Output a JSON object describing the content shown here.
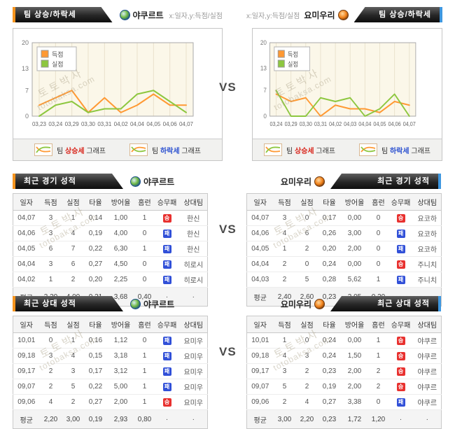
{
  "page": {
    "vs_label": "VS"
  },
  "watermark": {
    "line1": "토토박사",
    "line2": "totobaksa.com"
  },
  "teams": {
    "left": {
      "name": "야쿠르트"
    },
    "right": {
      "name": "요미우리"
    }
  },
  "trend": {
    "title": "팀 상승/하락세",
    "axis_hint": "x:일자,y:득점/실점",
    "legend": [
      {
        "pre": "팀 ",
        "em": "상승세",
        "post": " 그래프"
      },
      {
        "pre": "팀 ",
        "em": "하락세",
        "post": " 그래프"
      }
    ]
  },
  "recent": {
    "title": "최근 경기 성적",
    "columns": [
      "일자",
      "득점",
      "실점",
      "타율",
      "방어율",
      "홈런",
      "승무패",
      "상대팀"
    ],
    "left": {
      "rows": [
        {
          "date": "04,07",
          "gf": "3",
          "ga": "1",
          "ba": "0,14",
          "era": "1,00",
          "hr": "1",
          "res": "승",
          "res_type": "win",
          "opp": "한신"
        },
        {
          "date": "04,06",
          "gf": "3",
          "ga": "4",
          "ba": "0,19",
          "era": "4,00",
          "hr": "0",
          "res": "패",
          "res_type": "loss",
          "opp": "한신"
        },
        {
          "date": "04,05",
          "gf": "6",
          "ga": "7",
          "ba": "0,22",
          "era": "6,30",
          "hr": "1",
          "res": "패",
          "res_type": "loss",
          "opp": "한신"
        },
        {
          "date": "04,04",
          "gf": "3",
          "ga": "6",
          "ba": "0,27",
          "era": "4,50",
          "hr": "0",
          "res": "패",
          "res_type": "loss",
          "opp": "히로시"
        },
        {
          "date": "04,02",
          "gf": "1",
          "ga": "2",
          "ba": "0,20",
          "era": "2,25",
          "hr": "0",
          "res": "패",
          "res_type": "loss",
          "opp": "히로시"
        },
        {
          "date": "평균",
          "gf": "3,20",
          "ga": "4,00",
          "ba": "0,21",
          "era": "3,68",
          "hr": "0,40",
          "res": "·",
          "res_type": "none",
          "opp": "·",
          "avg": true
        }
      ]
    },
    "right": {
      "rows": [
        {
          "date": "04,07",
          "gf": "3",
          "ga": "0",
          "ba": "0,17",
          "era": "0,00",
          "hr": "0",
          "res": "승",
          "res_type": "win",
          "opp": "요코하"
        },
        {
          "date": "04,06",
          "gf": "4",
          "ga": "6",
          "ba": "0,26",
          "era": "3,00",
          "hr": "0",
          "res": "패",
          "res_type": "loss",
          "opp": "요코하"
        },
        {
          "date": "04,05",
          "gf": "1",
          "ga": "2",
          "ba": "0,20",
          "era": "2,00",
          "hr": "0",
          "res": "패",
          "res_type": "loss",
          "opp": "요코하"
        },
        {
          "date": "04,04",
          "gf": "2",
          "ga": "0",
          "ba": "0,24",
          "era": "0,00",
          "hr": "0",
          "res": "승",
          "res_type": "win",
          "opp": "주니치"
        },
        {
          "date": "04,03",
          "gf": "2",
          "ga": "5",
          "ba": "0,28",
          "era": "5,62",
          "hr": "1",
          "res": "패",
          "res_type": "loss",
          "opp": "주니치"
        },
        {
          "date": "평균",
          "gf": "2,40",
          "ga": "2,60",
          "ba": "0,23",
          "era": "2,05",
          "hr": "0,20",
          "res": "·",
          "res_type": "none",
          "opp": "·",
          "avg": true
        }
      ]
    }
  },
  "h2h": {
    "title": "최근 상대 성적",
    "columns": [
      "일자",
      "득점",
      "실점",
      "타율",
      "방어율",
      "홈런",
      "승무패",
      "상대팀"
    ],
    "left": {
      "rows": [
        {
          "date": "10,01",
          "gf": "0",
          "ga": "1",
          "ba": "0,16",
          "era": "1,12",
          "hr": "0",
          "res": "패",
          "res_type": "loss",
          "opp": "요미우"
        },
        {
          "date": "09,18",
          "gf": "3",
          "ga": "4",
          "ba": "0,15",
          "era": "3,18",
          "hr": "1",
          "res": "패",
          "res_type": "loss",
          "opp": "요미우"
        },
        {
          "date": "09,17",
          "gf": "2",
          "ga": "3",
          "ba": "0,17",
          "era": "3,12",
          "hr": "1",
          "res": "패",
          "res_type": "loss",
          "opp": "요미우"
        },
        {
          "date": "09,07",
          "gf": "2",
          "ga": "5",
          "ba": "0,22",
          "era": "5,00",
          "hr": "1",
          "res": "패",
          "res_type": "loss",
          "opp": "요미우"
        },
        {
          "date": "09,06",
          "gf": "4",
          "ga": "2",
          "ba": "0,27",
          "era": "2,00",
          "hr": "1",
          "res": "승",
          "res_type": "win",
          "opp": "요미우"
        },
        {
          "date": "평균",
          "gf": "2,20",
          "ga": "3,00",
          "ba": "0,19",
          "era": "2,93",
          "hr": "0,80",
          "res": "·",
          "res_type": "none",
          "opp": "·",
          "avg": true
        }
      ]
    },
    "right": {
      "rows": [
        {
          "date": "10,01",
          "gf": "1",
          "ga": "0",
          "ba": "0,24",
          "era": "0,00",
          "hr": "1",
          "res": "승",
          "res_type": "win",
          "opp": "야쿠르"
        },
        {
          "date": "09,18",
          "gf": "4",
          "ga": "3",
          "ba": "0,24",
          "era": "1,50",
          "hr": "1",
          "res": "승",
          "res_type": "win",
          "opp": "야쿠르"
        },
        {
          "date": "09,17",
          "gf": "3",
          "ga": "2",
          "ba": "0,23",
          "era": "2,00",
          "hr": "2",
          "res": "승",
          "res_type": "win",
          "opp": "야쿠르"
        },
        {
          "date": "09,07",
          "gf": "5",
          "ga": "2",
          "ba": "0,19",
          "era": "2,00",
          "hr": "2",
          "res": "승",
          "res_type": "win",
          "opp": "야쿠르"
        },
        {
          "date": "09,06",
          "gf": "2",
          "ga": "4",
          "ba": "0,27",
          "era": "3,38",
          "hr": "0",
          "res": "패",
          "res_type": "loss",
          "opp": "야쿠르"
        },
        {
          "date": "평균",
          "gf": "3,00",
          "ga": "2,20",
          "ba": "0,23",
          "era": "1,72",
          "hr": "1,20",
          "res": "·",
          "res_type": "none",
          "opp": "·",
          "avg": true
        }
      ]
    }
  },
  "chart_data": [
    {
      "type": "line",
      "title": "야쿠르트 팀 상승/하락세",
      "xlabel": "일자",
      "ylabel": "득점/실점",
      "categories": [
        "03,23",
        "03,24",
        "03,29",
        "03,30",
        "03,31",
        "04,02",
        "04,04",
        "04,05",
        "04,06",
        "04,07"
      ],
      "series": [
        {
          "name": "득점",
          "color": "#ff9933",
          "values": [
            3,
            5,
            7,
            1,
            5,
            1,
            3,
            6,
            3,
            3
          ]
        },
        {
          "name": "실점",
          "color": "#8dc73f",
          "values": [
            0,
            3,
            4,
            1,
            2,
            2,
            6,
            7,
            4,
            1
          ]
        }
      ],
      "ylim": [
        0,
        20
      ],
      "yticks": [
        0,
        7,
        13,
        20
      ],
      "grid": "vertical",
      "legend_position": "top-left",
      "plot_bg": "#fbf7e9",
      "grid_color": "#e8e1cb",
      "border_color": "#a9a9a9"
    },
    {
      "type": "line",
      "title": "요미우리 팀 상승/하락세",
      "xlabel": "일자",
      "ylabel": "득점/실점",
      "categories": [
        "03,24",
        "03,29",
        "03,30",
        "03,31",
        "04,02",
        "04,03",
        "04,04",
        "04,05",
        "04,06",
        "04,07"
      ],
      "series": [
        {
          "name": "득점",
          "color": "#ff9933",
          "values": [
            6,
            4,
            5,
            0,
            3,
            2,
            2,
            1,
            4,
            3
          ]
        },
        {
          "name": "실점",
          "color": "#8dc73f",
          "values": [
            7,
            0,
            0,
            5,
            4,
            5,
            0,
            2,
            6,
            0
          ]
        }
      ],
      "ylim": [
        0,
        20
      ],
      "yticks": [
        0,
        7,
        13,
        20
      ],
      "grid": "vertical",
      "legend_position": "top-left",
      "plot_bg": "#fbf7e9",
      "grid_color": "#e8e1cb",
      "border_color": "#a9a9a9"
    }
  ]
}
